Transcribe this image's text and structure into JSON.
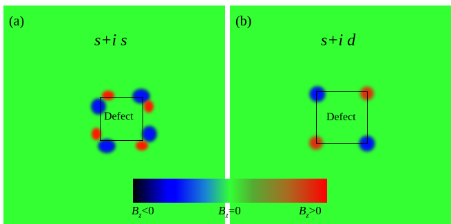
{
  "panels": [
    {
      "label": "(a)",
      "title": "s+i s",
      "defect_label": "Defect"
    },
    {
      "label": "(b)",
      "title": "s+i d",
      "defect_label": "Defect"
    }
  ],
  "colorbar": {
    "left_var": "B",
    "left_sub": "z",
    "left_rel": "<0",
    "mid_var": "B",
    "mid_sub": "z",
    "mid_rel": "=0",
    "right_var": "B",
    "right_sub": "z",
    "right_rel": ">0"
  },
  "colors": {
    "background": "#33ff33",
    "negative": "#0000ff",
    "positive": "#ff0000"
  }
}
